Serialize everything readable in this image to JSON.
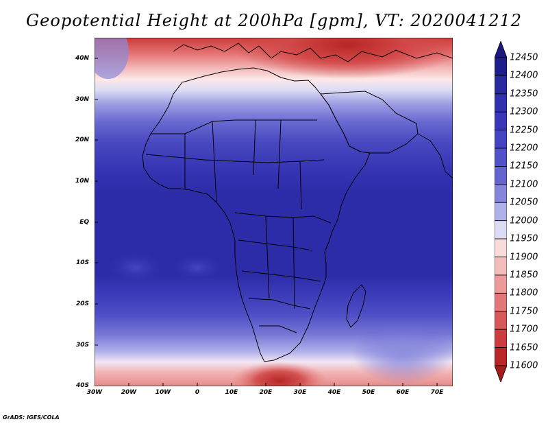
{
  "title": "Geopotential Height at 200hPa [gpm], VT: 2020041212",
  "credit": "GrADS: IGES/COLA",
  "map": {
    "lat_ticks": [
      "40N",
      "30N",
      "20N",
      "10N",
      "EQ",
      "10S",
      "20S",
      "30S",
      "40S"
    ],
    "lon_ticks": [
      "30W",
      "20W",
      "10W",
      "0",
      "10E",
      "20E",
      "30E",
      "40E",
      "50E",
      "60E",
      "70E"
    ]
  },
  "colorbar": {
    "levels": [
      "12450",
      "12400",
      "12350",
      "12300",
      "12250",
      "12200",
      "12150",
      "12100",
      "12050",
      "12000",
      "11950",
      "11900",
      "11850",
      "11800",
      "11750",
      "11700",
      "11650",
      "11600"
    ],
    "colors": [
      "#1e1e8c",
      "#2a2aa0",
      "#3131ae",
      "#3737b8",
      "#4444c2",
      "#5252c8",
      "#6565d0",
      "#8585dc",
      "#b0b0ea",
      "#dcdcf5",
      "#fadcdc",
      "#f5bcbc",
      "#ec9a9a",
      "#e27878",
      "#d85858",
      "#cd3c3c",
      "#b82626"
    ]
  }
}
